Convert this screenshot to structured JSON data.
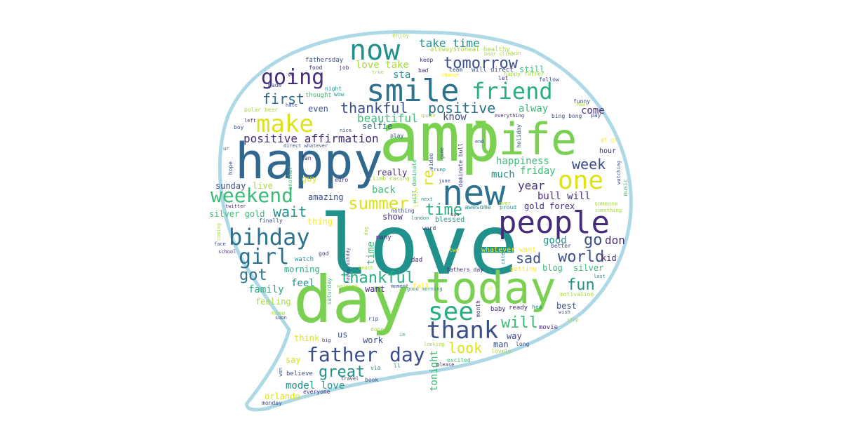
{
  "palette": {
    "dark_purple": "#472c7a",
    "indigo": "#3b4f8a",
    "blue": "#31688e",
    "steel": "#2c728e",
    "teal": "#21918c",
    "sea_green": "#28ae80",
    "green": "#3bbb75",
    "lime": "#7ad151",
    "light_lime": "#a5db36",
    "yellow": "#dde318",
    "bright_yellow": "#fde725",
    "outline": "#add8e6"
  },
  "words": [
    {
      "text": "amp",
      "color": "lime"
    },
    {
      "text": "love",
      "color": "teal"
    },
    {
      "text": "happy",
      "color": "blue"
    },
    {
      "text": "day",
      "color": "lime"
    },
    {
      "text": "life",
      "color": "lime"
    },
    {
      "text": "today",
      "color": "lime"
    },
    {
      "text": "new",
      "color": "steel"
    },
    {
      "text": "people",
      "color": "dark_purple"
    },
    {
      "text": "smile",
      "color": "steel"
    },
    {
      "text": "now",
      "color": "teal"
    },
    {
      "text": "friend",
      "color": "sea_green"
    },
    {
      "text": "one",
      "color": "yellow"
    },
    {
      "text": "make",
      "color": "yellow"
    },
    {
      "text": "bihday",
      "color": "steel"
    },
    {
      "text": "going",
      "color": "dark_purple"
    },
    {
      "text": "weekend",
      "color": "green"
    },
    {
      "text": "see",
      "color": "sea_green"
    },
    {
      "text": "thank",
      "color": "indigo"
    },
    {
      "text": "father day",
      "color": "indigo"
    },
    {
      "text": "girl",
      "color": "steel"
    },
    {
      "text": "tomorrow",
      "color": "indigo"
    },
    {
      "text": "summer",
      "color": "yellow"
    },
    {
      "text": "positive",
      "color": "steel"
    },
    {
      "text": "thankful",
      "color": "indigo"
    },
    {
      "text": "thankful",
      "color": "sea_green"
    },
    {
      "text": "world",
      "color": "indigo"
    },
    {
      "text": "first",
      "color": "blue"
    },
    {
      "text": "week",
      "color": "indigo"
    },
    {
      "text": "got",
      "color": "steel"
    },
    {
      "text": "fun",
      "color": "teal"
    },
    {
      "text": "will",
      "color": "green"
    },
    {
      "text": "time",
      "color": "sea_green"
    },
    {
      "text": "great",
      "color": "teal"
    },
    {
      "text": "look",
      "color": "yellow"
    },
    {
      "text": "wait",
      "color": "teal"
    },
    {
      "text": "go",
      "color": "indigo"
    },
    {
      "text": "sad",
      "color": "indigo"
    },
    {
      "text": "take time",
      "color": "teal"
    },
    {
      "text": "beautiful",
      "color": "green"
    },
    {
      "text": "positive affirmation",
      "color": "dark_purple"
    },
    {
      "text": "love take",
      "color": "light_lime"
    },
    {
      "text": "happiness",
      "color": "green"
    },
    {
      "text": "year",
      "color": "dark_purple"
    },
    {
      "text": "bull will",
      "color": "dark_purple"
    },
    {
      "text": "don",
      "color": "dark_purple"
    },
    {
      "text": "good",
      "color": "teal"
    },
    {
      "text": "model love",
      "color": "teal"
    },
    {
      "text": "tonight",
      "color": "green"
    },
    {
      "text": "time",
      "color": "green"
    },
    {
      "text": "re",
      "color": "yellow"
    },
    {
      "text": "back",
      "color": "green"
    },
    {
      "text": "alway",
      "color": "green"
    },
    {
      "text": "come",
      "color": "dark_purple"
    },
    {
      "text": "know",
      "color": "indigo"
    },
    {
      "text": "friday",
      "color": "green"
    },
    {
      "text": "much",
      "color": "teal"
    },
    {
      "text": "selfie",
      "color": "blue"
    },
    {
      "text": "sta",
      "color": "teal"
    },
    {
      "text": "still",
      "color": "green"
    },
    {
      "text": "blog",
      "color": "green"
    },
    {
      "text": "silver",
      "color": "green"
    },
    {
      "text": "kid",
      "color": "dark_purple"
    },
    {
      "text": "best",
      "color": "indigo"
    },
    {
      "text": "man",
      "color": "indigo"
    },
    {
      "text": "way",
      "color": "indigo"
    },
    {
      "text": "work",
      "color": "indigo"
    },
    {
      "text": "us",
      "color": "indigo"
    },
    {
      "text": "say",
      "color": "yellow"
    },
    {
      "text": "think",
      "color": "yellow"
    },
    {
      "text": "family",
      "color": "sea_green"
    },
    {
      "text": "feel",
      "color": "teal"
    },
    {
      "text": "feeling",
      "color": "light_lime"
    },
    {
      "text": "want",
      "color": "dark_purple"
    },
    {
      "text": "morning",
      "color": "sea_green"
    },
    {
      "text": "amazing",
      "color": "indigo"
    },
    {
      "text": "guy",
      "color": "yellow"
    },
    {
      "text": "live",
      "color": "light_lime"
    },
    {
      "text": "sunday",
      "color": "indigo"
    },
    {
      "text": "silver gold",
      "color": "green"
    },
    {
      "text": "gold forex",
      "color": "dark_purple"
    },
    {
      "text": "really",
      "color": "dark_purple"
    },
    {
      "text": "orlando",
      "color": "yellow"
    },
    {
      "text": "even",
      "color": "indigo"
    },
    {
      "text": "thing",
      "color": "bright_yellow"
    },
    {
      "text": "show",
      "color": "dark_purple"
    },
    {
      "text": "enjoy",
      "color": "light_lime"
    },
    {
      "text": "fathersday",
      "color": "indigo"
    },
    {
      "text": "food",
      "color": "dark_purple"
    },
    {
      "text": "altwaystoheal healthy",
      "color": "light_lime"
    },
    {
      "text": "keep",
      "color": "dark_purple"
    },
    {
      "text": "team",
      "color": "indigo"
    },
    {
      "text": "will direct",
      "color": "indigo"
    },
    {
      "text": "happy father",
      "color": "light_lime"
    },
    {
      "text": "let",
      "color": "dark_purple"
    },
    {
      "text": "follow",
      "color": "indigo"
    },
    {
      "text": "job",
      "color": "dark_purple"
    },
    {
      "text": "bad",
      "color": "dark_purple"
    },
    {
      "text": "change",
      "color": "bright_yellow"
    },
    {
      "text": "bear climb",
      "color": "light_lime"
    },
    {
      "text": "win",
      "color": "light_lime"
    },
    {
      "text": "ve",
      "color": "dark_purple"
    },
    {
      "text": "true",
      "color": "light_lime"
    },
    {
      "text": "made",
      "color": "indigo"
    },
    {
      "text": "night",
      "color": "teal"
    },
    {
      "text": "wow",
      "color": "teal"
    },
    {
      "text": "thought",
      "color": "green"
    },
    {
      "text": "hate",
      "color": "indigo"
    },
    {
      "text": "polar bear",
      "color": "light_lime"
    },
    {
      "text": "quote",
      "color": "light_lime"
    },
    {
      "text": "everything",
      "color": "dark_purple"
    },
    {
      "text": "funny",
      "color": "indigo"
    },
    {
      "text": "real",
      "color": "light_lime"
    },
    {
      "text": "bing bong",
      "color": "indigo"
    },
    {
      "text": "pay",
      "color": "indigo"
    },
    {
      "text": "left",
      "color": "dark_purple"
    },
    {
      "text": "boy",
      "color": "indigo"
    },
    {
      "text": "nice",
      "color": "indigo"
    },
    {
      "text": "direct whatever",
      "color": "indigo"
    },
    {
      "text": "play",
      "color": "indigo"
    },
    {
      "text": "holiday",
      "color": "indigo"
    },
    {
      "text": "gt gt",
      "color": "bright_yellow"
    },
    {
      "text": "hour",
      "color": "dark_purple"
    },
    {
      "text": "ur",
      "color": "indigo"
    },
    {
      "text": "fan",
      "color": "dark_purple"
    },
    {
      "text": "hope",
      "color": "indigo"
    },
    {
      "text": "another",
      "color": "green"
    },
    {
      "text": "euro",
      "color": "dark_purple"
    },
    {
      "text": "climb racing",
      "color": "light_lime"
    },
    {
      "text": "june",
      "color": "indigo"
    },
    {
      "text": "trump",
      "color": "teal"
    },
    {
      "text": "game",
      "color": "indigo"
    },
    {
      "text": "dominate bull",
      "color": "dark_purple"
    },
    {
      "text": "end",
      "color": "indigo"
    },
    {
      "text": "watching",
      "color": "indigo"
    },
    {
      "text": "music",
      "color": "green"
    },
    {
      "text": "someone",
      "color": "light_lime"
    },
    {
      "text": "something",
      "color": "light_lime"
    },
    {
      "text": "twitter",
      "color": "dark_purple"
    },
    {
      "text": "finally",
      "color": "indigo"
    },
    {
      "text": "coming",
      "color": "light_lime"
    },
    {
      "text": "face",
      "color": "indigo"
    },
    {
      "text": "school",
      "color": "dark_purple"
    },
    {
      "text": "god",
      "color": "dark_purple"
    },
    {
      "text": "watch",
      "color": "teal"
    },
    {
      "text": "nothing",
      "color": "indigo"
    },
    {
      "text": "london",
      "color": "teal"
    },
    {
      "text": "word",
      "color": "dark_purple"
    },
    {
      "text": "blessed",
      "color": "teal"
    },
    {
      "text": "sun",
      "color": "dark_purple"
    },
    {
      "text": "awesome",
      "color": "teal"
    },
    {
      "text": "proud",
      "color": "teal"
    },
    {
      "text": "ever",
      "color": "light_lime"
    },
    {
      "text": "next",
      "color": "teal"
    },
    {
      "text": "little",
      "color": "bright_yellow"
    },
    {
      "text": "many",
      "color": "dark_purple"
    },
    {
      "text": "dad",
      "color": "dark_purple"
    },
    {
      "text": "two",
      "color": "bright_yellow"
    },
    {
      "text": "whatever want",
      "color": "bright_yellow"
    },
    {
      "text": "better",
      "color": "indigo"
    },
    {
      "text": "getting",
      "color": "bright_yellow"
    },
    {
      "text": "fathers day",
      "color": "dark_purple"
    },
    {
      "text": "last",
      "color": "teal"
    },
    {
      "text": "motivation",
      "color": "light_lime"
    },
    {
      "text": "cute",
      "color": "teal"
    },
    {
      "text": "happy bihday",
      "color": "indigo"
    },
    {
      "text": "dog",
      "color": "light_lime"
    },
    {
      "text": "beach",
      "color": "light_lime"
    },
    {
      "text": "moment",
      "color": "indigo"
    },
    {
      "text": "good morning",
      "color": "teal"
    },
    {
      "text": "ye",
      "color": "bright_yellow"
    },
    {
      "text": "waiting",
      "color": "light_lime"
    },
    {
      "text": "saturday",
      "color": "green"
    },
    {
      "text": "month",
      "color": "dark_purple"
    },
    {
      "text": "baby",
      "color": "dark_purple"
    },
    {
      "text": "ready",
      "color": "dark_purple"
    },
    {
      "text": "hea",
      "color": "teal"
    },
    {
      "text": "wish",
      "color": "indigo"
    },
    {
      "text": "stop",
      "color": "light_lime"
    },
    {
      "text": "movie",
      "color": "dark_purple"
    },
    {
      "text": "home",
      "color": "light_lime"
    },
    {
      "text": "soon",
      "color": "indigo"
    },
    {
      "text": "rip",
      "color": "indigo"
    },
    {
      "text": "done",
      "color": "light_lime"
    },
    {
      "text": "im",
      "color": "green"
    },
    {
      "text": "big",
      "color": "dark_purple"
    },
    {
      "text": "long",
      "color": "indigo"
    },
    {
      "text": "lovely",
      "color": "light_lime"
    },
    {
      "text": "looking",
      "color": "light_lime"
    },
    {
      "text": "excited",
      "color": "green"
    },
    {
      "text": "please",
      "color": "dark_purple"
    },
    {
      "text": "via",
      "color": "teal"
    },
    {
      "text": "ll",
      "color": "teal"
    },
    {
      "text": "book",
      "color": "indigo"
    },
    {
      "text": "travel",
      "color": "dark_purple"
    },
    {
      "text": "won",
      "color": "indigo"
    },
    {
      "text": "believe",
      "color": "indigo"
    },
    {
      "text": "everyone",
      "color": "dark_purple"
    },
    {
      "text": "monday",
      "color": "indigo"
    },
    {
      "text": "video",
      "color": "indigo"
    },
    {
      "text": "will dominate",
      "color": "green"
    },
    {
      "text": "fall",
      "color": "bright_yellow"
    }
  ]
}
